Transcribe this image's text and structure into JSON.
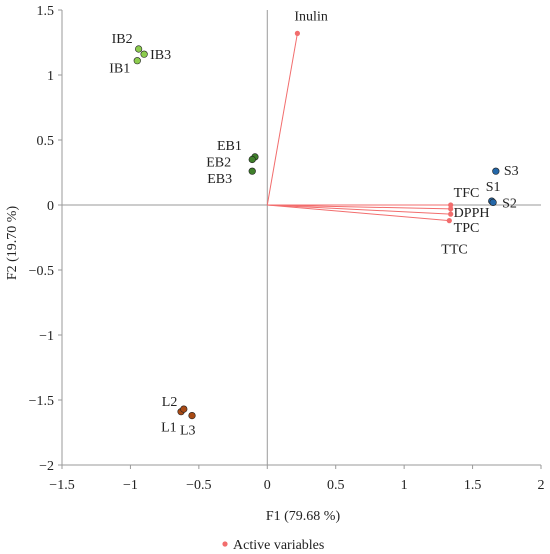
{
  "chart_data": {
    "type": "scatter",
    "xlabel": "F1 (79.68 %)",
    "ylabel": "F2 (19.70 %)",
    "xlim": [
      -1.5,
      2
    ],
    "ylim": [
      -2,
      1.5
    ],
    "xticks": [
      -1.5,
      -1,
      -0.5,
      0,
      0.5,
      1,
      1.5,
      2
    ],
    "yticks": [
      -2,
      -1.5,
      -1,
      -0.5,
      0,
      0.5,
      1,
      1.5
    ],
    "xtick_labels": [
      "−1.5",
      "−1",
      "−0.5",
      "0",
      "0.5",
      "1",
      "1.5",
      "2"
    ],
    "ytick_labels": [
      "−2",
      "−1.5",
      "−1",
      "−0.5",
      "0",
      "0.5",
      "1",
      "1.5"
    ],
    "grid": false,
    "legend": {
      "placement": "bottom-center",
      "entries": [
        "Active variables"
      ]
    },
    "colors": {
      "variables": "#f26d6d",
      "IB": "#8ccc4e",
      "EB": "#3f7f2a",
      "S": "#2467a8",
      "L": "#a84a15"
    },
    "variables": [
      {
        "label": "Inulin",
        "x": 0.22,
        "y": 1.32
      },
      {
        "label": "TFC",
        "x": 1.34,
        "y": 0.0
      },
      {
        "label": "DPPH",
        "x": 1.34,
        "y": -0.03
      },
      {
        "label": "TPC",
        "x": 1.34,
        "y": -0.07
      },
      {
        "label": "TTC",
        "x": 1.33,
        "y": -0.12
      }
    ],
    "observations": [
      {
        "label": "IB1",
        "group": "IB",
        "x": -0.95,
        "y": 1.11
      },
      {
        "label": "IB2",
        "group": "IB",
        "x": -0.94,
        "y": 1.2
      },
      {
        "label": "IB3",
        "group": "IB",
        "x": -0.9,
        "y": 1.16
      },
      {
        "label": "EB1",
        "group": "EB",
        "x": -0.09,
        "y": 0.37
      },
      {
        "label": "EB2",
        "group": "EB",
        "x": -0.11,
        "y": 0.35
      },
      {
        "label": "EB3",
        "group": "EB",
        "x": -0.11,
        "y": 0.26
      },
      {
        "label": "S1",
        "group": "S",
        "x": 1.64,
        "y": 0.03
      },
      {
        "label": "S2",
        "group": "S",
        "x": 1.65,
        "y": 0.02
      },
      {
        "label": "S3",
        "group": "S",
        "x": 1.67,
        "y": 0.26
      },
      {
        "label": "L1",
        "group": "L",
        "x": -0.63,
        "y": -1.59
      },
      {
        "label": "L2",
        "group": "L",
        "x": -0.61,
        "y": -1.57
      },
      {
        "label": "L3",
        "group": "L",
        "x": -0.55,
        "y": -1.62
      }
    ]
  }
}
